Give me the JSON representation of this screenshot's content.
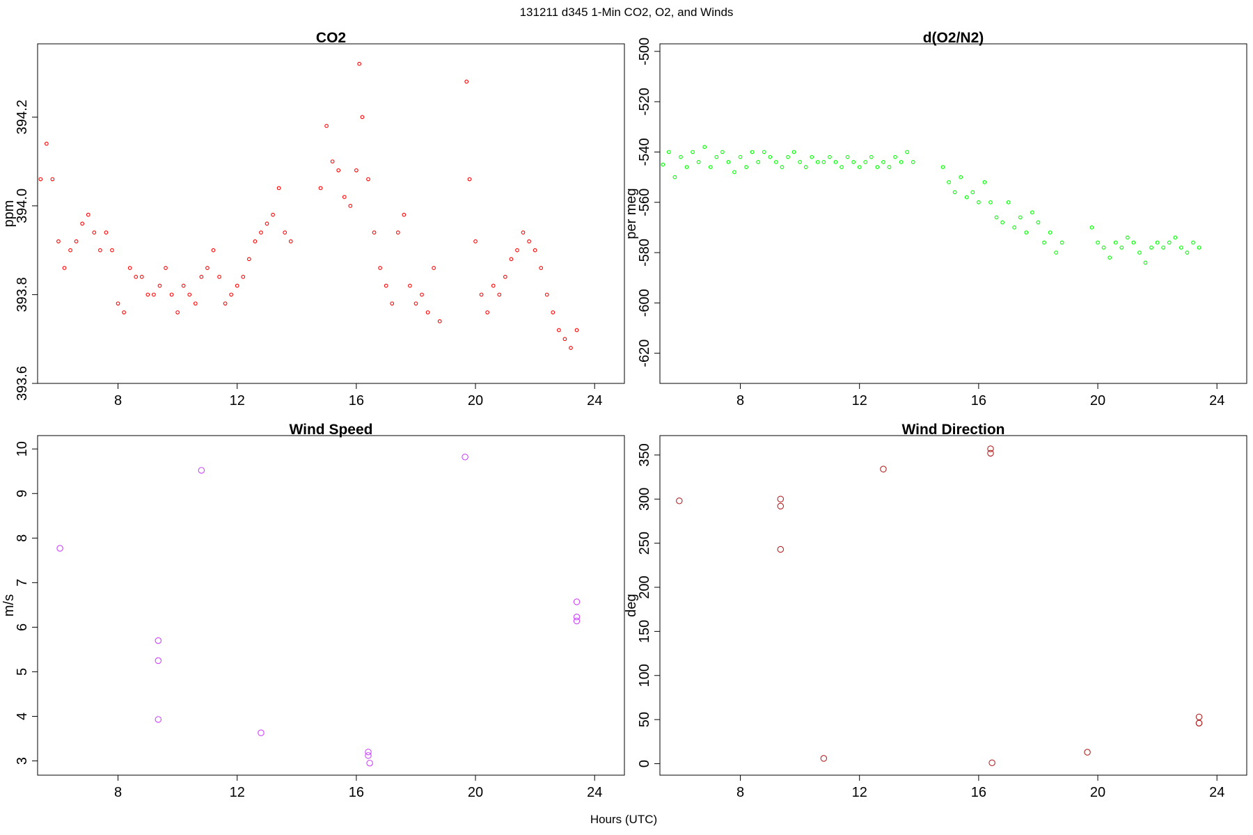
{
  "figure": {
    "title": "131211   d345   1-Min CO2, O2, and Winds",
    "xlabel": "Hours (UTC)"
  },
  "chart_data": [
    {
      "id": "co2",
      "type": "scatter",
      "title": "CO2",
      "xlabel": "",
      "ylabel": "ppm",
      "xlim": [
        5.3,
        25.0
      ],
      "ylim": [
        393.6,
        394.365
      ],
      "xticks": [
        8,
        12,
        16,
        20,
        24
      ],
      "yticks": [
        393.6,
        393.8,
        394.0,
        394.2
      ],
      "ytick_labels": [
        "393.6",
        "393.8",
        "394.0",
        "394.2"
      ],
      "color": "#ff0000",
      "grid": false,
      "series": [
        {
          "x": [
            5.4,
            5.6,
            5.8,
            6.0,
            6.2,
            6.4,
            6.6,
            6.8,
            7.0,
            7.2,
            7.4,
            7.6,
            7.8,
            8.0,
            8.2,
            8.4,
            8.6,
            8.8,
            9.0,
            9.2,
            9.4,
            9.6,
            9.8,
            10.0,
            10.2,
            10.4,
            10.6,
            10.8,
            11.0,
            11.2,
            11.4,
            11.6,
            11.8,
            12.0,
            12.2,
            12.4,
            12.6,
            12.8,
            13.0,
            13.2,
            13.4,
            13.6,
            13.8,
            14.8,
            15.0,
            15.2,
            15.4,
            15.6,
            15.8,
            16.0,
            16.1,
            16.2,
            16.4,
            16.6,
            16.8,
            17.0,
            17.2,
            17.4,
            17.6,
            17.8,
            18.0,
            18.2,
            18.4,
            18.6,
            18.8,
            19.7,
            19.8,
            20.0,
            20.2,
            20.4,
            20.6,
            20.8,
            21.0,
            21.2,
            21.4,
            21.6,
            21.8,
            22.0,
            22.2,
            22.4,
            22.6,
            22.8,
            23.0,
            23.2,
            23.4
          ],
          "y": [
            394.06,
            394.14,
            394.06,
            393.92,
            393.86,
            393.9,
            393.92,
            393.96,
            393.98,
            393.94,
            393.9,
            393.94,
            393.9,
            393.78,
            393.76,
            393.86,
            393.84,
            393.84,
            393.8,
            393.8,
            393.82,
            393.86,
            393.8,
            393.76,
            393.82,
            393.8,
            393.78,
            393.84,
            393.86,
            393.9,
            393.84,
            393.78,
            393.8,
            393.82,
            393.84,
            393.88,
            393.92,
            393.94,
            393.96,
            393.98,
            394.04,
            393.94,
            393.92,
            394.04,
            394.18,
            394.1,
            394.08,
            394.02,
            394.0,
            394.08,
            394.32,
            394.2,
            394.06,
            393.94,
            393.86,
            393.82,
            393.78,
            393.94,
            393.98,
            393.82,
            393.78,
            393.8,
            393.76,
            393.86,
            393.74,
            394.28,
            394.06,
            393.92,
            393.8,
            393.76,
            393.82,
            393.8,
            393.84,
            393.88,
            393.9,
            393.94,
            393.92,
            393.9,
            393.86,
            393.8,
            393.76,
            393.72,
            393.7,
            393.68,
            393.72
          ]
        }
      ]
    },
    {
      "id": "o2n2",
      "type": "scatter",
      "title": "d(O2/N2)",
      "xlabel": "",
      "ylabel": "per meg",
      "xlim": [
        5.3,
        25.0
      ],
      "ylim": [
        -632,
        -497
      ],
      "xticks": [
        8,
        12,
        16,
        20,
        24
      ],
      "yticks": [
        -620,
        -600,
        -580,
        -560,
        -540,
        -520,
        -500
      ],
      "ytick_labels": [
        "-620",
        "-600",
        "-580",
        "-560",
        "-540",
        "-520",
        "-500"
      ],
      "color": "#00ff00",
      "grid": false,
      "series": [
        {
          "x": [
            5.4,
            5.6,
            5.8,
            6.0,
            6.2,
            6.4,
            6.6,
            6.8,
            7.0,
            7.2,
            7.4,
            7.6,
            7.8,
            8.0,
            8.2,
            8.4,
            8.6,
            8.8,
            9.0,
            9.2,
            9.4,
            9.6,
            9.8,
            10.0,
            10.2,
            10.4,
            10.6,
            10.8,
            11.0,
            11.2,
            11.4,
            11.6,
            11.8,
            12.0,
            12.2,
            12.4,
            12.6,
            12.8,
            13.0,
            13.2,
            13.4,
            13.6,
            13.8,
            14.8,
            15.0,
            15.2,
            15.4,
            15.6,
            15.8,
            16.0,
            16.2,
            16.4,
            16.6,
            16.8,
            17.0,
            17.2,
            17.4,
            17.6,
            17.8,
            18.0,
            18.2,
            18.4,
            18.6,
            18.8,
            19.8,
            20.0,
            20.2,
            20.4,
            20.6,
            20.8,
            21.0,
            21.2,
            21.4,
            21.6,
            21.8,
            22.0,
            22.2,
            22.4,
            22.6,
            22.8,
            23.0,
            23.2,
            23.4
          ],
          "y": [
            -545,
            -540,
            -550,
            -542,
            -546,
            -540,
            -544,
            -538,
            -546,
            -542,
            -540,
            -544,
            -548,
            -542,
            -546,
            -540,
            -544,
            -540,
            -542,
            -544,
            -546,
            -542,
            -540,
            -544,
            -546,
            -542,
            -544,
            -544,
            -542,
            -544,
            -546,
            -542,
            -544,
            -546,
            -544,
            -542,
            -546,
            -544,
            -546,
            -542,
            -544,
            -540,
            -544,
            -546,
            -552,
            -556,
            -550,
            -558,
            -556,
            -560,
            -552,
            -560,
            -566,
            -568,
            -560,
            -570,
            -566,
            -572,
            -564,
            -568,
            -576,
            -572,
            -580,
            -576,
            -570,
            -576,
            -578,
            -582,
            -576,
            -578,
            -574,
            -576,
            -580,
            -584,
            -578,
            -576,
            -578,
            -576,
            -574,
            -578,
            -580,
            -576,
            -578
          ]
        }
      ]
    },
    {
      "id": "wspd",
      "type": "scatter",
      "title": "Wind Speed",
      "xlabel": "",
      "ylabel": "m/s",
      "xlim": [
        5.3,
        25.0
      ],
      "ylim": [
        2.68,
        10.3
      ],
      "xticks": [
        8,
        12,
        16,
        20,
        24
      ],
      "yticks": [
        3,
        4,
        5,
        6,
        7,
        8,
        9,
        10
      ],
      "ytick_labels": [
        "3",
        "4",
        "5",
        "6",
        "7",
        "8",
        "9",
        "10"
      ],
      "color": "#cc44ff",
      "grid": false,
      "series": [
        {
          "x": [
            6.05,
            9.35,
            9.35,
            9.35,
            10.8,
            12.8,
            16.4,
            16.4,
            16.45,
            19.65,
            23.4,
            23.4,
            23.4
          ],
          "y": [
            7.77,
            5.7,
            5.25,
            3.93,
            9.52,
            3.63,
            3.2,
            3.12,
            2.95,
            9.82,
            6.57,
            6.23,
            6.14
          ]
        }
      ]
    },
    {
      "id": "wdir",
      "type": "scatter",
      "title": "Wind Direction",
      "xlabel": "",
      "ylabel": "deg",
      "xlim": [
        5.3,
        25.0
      ],
      "ylim": [
        -13,
        372
      ],
      "xticks": [
        8,
        12,
        16,
        20,
        24
      ],
      "yticks": [
        0,
        50,
        100,
        150,
        200,
        250,
        300,
        350
      ],
      "ytick_labels": [
        "0",
        "50",
        "100",
        "150",
        "200",
        "250",
        "300",
        "350"
      ],
      "color": "#b22222",
      "grid": false,
      "series": [
        {
          "x": [
            5.95,
            9.35,
            9.35,
            9.35,
            10.8,
            12.8,
            16.4,
            16.4,
            16.45,
            19.65,
            23.4,
            23.4,
            23.4
          ],
          "y": [
            298,
            300,
            292,
            243,
            6,
            334,
            357,
            352,
            1,
            13,
            53,
            46,
            46
          ]
        }
      ]
    }
  ]
}
